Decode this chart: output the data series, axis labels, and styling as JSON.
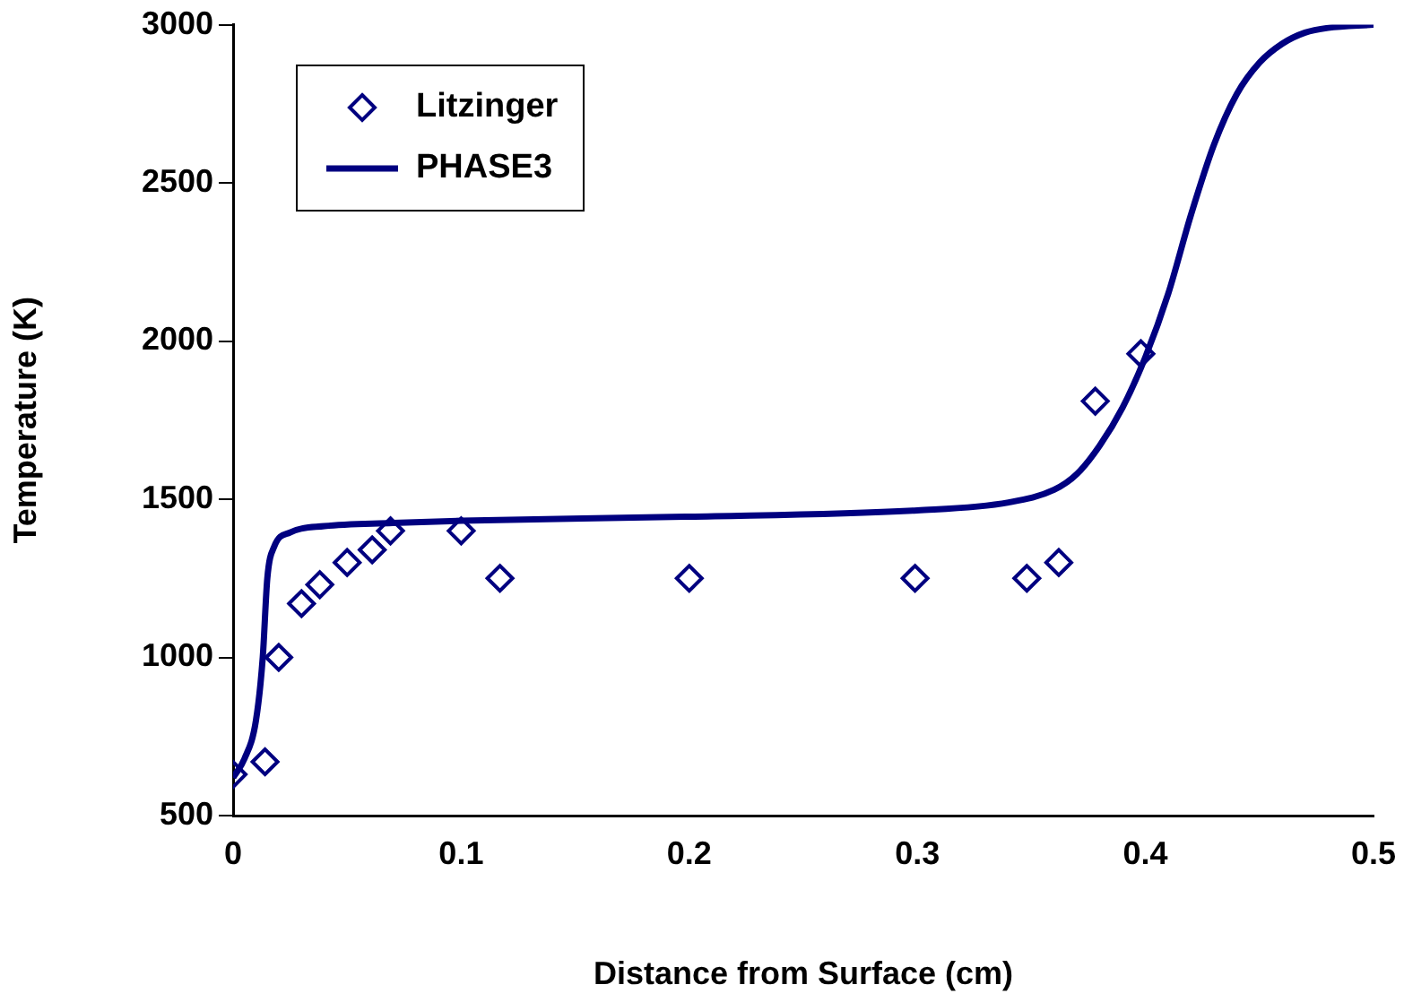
{
  "chart_data": {
    "type": "scatter",
    "xlabel": "Distance from Surface (cm)",
    "ylabel": "Temperature (K)",
    "xlim": [
      0,
      0.5
    ],
    "ylim": [
      500,
      3000
    ],
    "xticks": [
      0,
      0.1,
      0.2,
      0.3,
      0.4,
      0.5
    ],
    "yticks": [
      500,
      1000,
      1500,
      2000,
      2500,
      3000
    ],
    "legend": "top left",
    "series": [
      {
        "name": "Litzinger",
        "type": "scatter",
        "marker": "diamond",
        "color": "#000080",
        "x": [
          0,
          0.014,
          0.02,
          0.03,
          0.038,
          0.05,
          0.061,
          0.069,
          0.1,
          0.117,
          0.2,
          0.299,
          0.348,
          0.362,
          0.378,
          0.398
        ],
        "values": [
          630,
          670,
          1000,
          1170,
          1230,
          1300,
          1340,
          1400,
          1400,
          1250,
          1250,
          1250,
          1250,
          1300,
          1810,
          1960
        ]
      },
      {
        "name": "PHASE3",
        "type": "line",
        "marker": "none",
        "color": "#000080",
        "x": [
          0,
          0.005,
          0.01,
          0.013,
          0.015,
          0.018,
          0.025,
          0.04,
          0.07,
          0.1,
          0.2,
          0.3,
          0.34,
          0.36,
          0.37,
          0.38,
          0.39,
          0.4,
          0.41,
          0.42,
          0.43,
          0.44,
          0.45,
          0.46,
          0.47,
          0.48,
          0.5
        ],
        "values": [
          620,
          680,
          800,
          1000,
          1250,
          1350,
          1395,
          1415,
          1425,
          1432,
          1445,
          1465,
          1490,
          1530,
          1580,
          1670,
          1790,
          1950,
          2150,
          2400,
          2620,
          2780,
          2880,
          2940,
          2975,
          2990,
          3000
        ]
      }
    ]
  }
}
